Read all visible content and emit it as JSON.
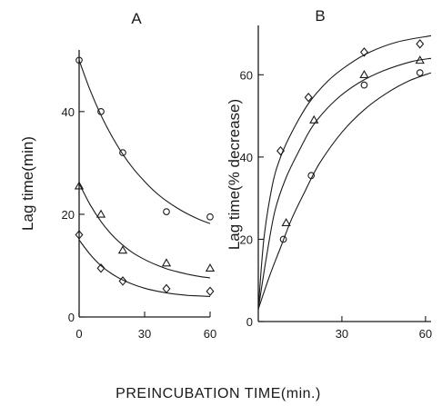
{
  "x_title": "PREINCUBATION TIME(min.)",
  "chart_data": [
    {
      "type": "scatter",
      "panel": "A",
      "xlabel": "",
      "ylabel": "Lag time(min)",
      "xlim": [
        0,
        60
      ],
      "ylim": [
        0,
        52
      ],
      "x_ticks": [
        0,
        30,
        60
      ],
      "y_ticks": [
        0,
        20,
        40
      ],
      "grid": false,
      "series": [
        {
          "marker": "circle",
          "points": [
            [
              0,
              50
            ],
            [
              10,
              40
            ],
            [
              20,
              32
            ],
            [
              40,
              20.5
            ],
            [
              60,
              19.5
            ]
          ],
          "curve": [
            [
              0,
              50
            ],
            [
              5,
              44.2
            ],
            [
              10,
              39.3
            ],
            [
              15,
              35.2
            ],
            [
              20,
              31.7
            ],
            [
              25,
              28.8
            ],
            [
              30,
              26.4
            ],
            [
              35,
              24.3
            ],
            [
              40,
              22.6
            ],
            [
              45,
              21.2
            ],
            [
              50,
              20
            ],
            [
              55,
              19
            ],
            [
              60,
              18.2
            ]
          ]
        },
        {
          "marker": "triangle",
          "points": [
            [
              0,
              25.5
            ],
            [
              10,
              20
            ],
            [
              20,
              13
            ],
            [
              40,
              10.5
            ],
            [
              60,
              9.5
            ]
          ],
          "curve": [
            [
              0,
              26
            ],
            [
              5,
              21.9
            ],
            [
              10,
              18.6
            ],
            [
              15,
              16
            ],
            [
              20,
              14
            ],
            [
              25,
              12.4
            ],
            [
              30,
              11.2
            ],
            [
              35,
              10.2
            ],
            [
              40,
              9.4
            ],
            [
              45,
              8.8
            ],
            [
              50,
              8.3
            ],
            [
              55,
              7.9
            ],
            [
              60,
              7.6
            ]
          ]
        },
        {
          "marker": "diamond",
          "points": [
            [
              0,
              16
            ],
            [
              10,
              9.5
            ],
            [
              20,
              7
            ],
            [
              40,
              5.5
            ],
            [
              60,
              5
            ]
          ],
          "curve": [
            [
              0,
              15
            ],
            [
              5,
              12.2
            ],
            [
              10,
              10
            ],
            [
              15,
              8.4
            ],
            [
              20,
              7.2
            ],
            [
              25,
              6.3
            ],
            [
              30,
              5.6
            ],
            [
              35,
              5.1
            ],
            [
              40,
              4.7
            ],
            [
              45,
              4.4
            ],
            [
              50,
              4.2
            ],
            [
              55,
              4.1
            ],
            [
              60,
              4
            ]
          ]
        }
      ]
    },
    {
      "type": "scatter",
      "panel": "B",
      "xlabel": "",
      "ylabel": "Lag time(% decrease)",
      "xlim": [
        0,
        62
      ],
      "ylim": [
        0,
        72
      ],
      "x_ticks": [
        30,
        60
      ],
      "y_ticks": [
        0,
        20,
        40,
        60
      ],
      "grid": false,
      "series": [
        {
          "marker": "diamond",
          "points": [
            [
              8,
              41.5
            ],
            [
              18,
              54.5
            ],
            [
              38,
              65.5
            ],
            [
              58,
              67.5
            ]
          ],
          "curve": [
            [
              0,
              3
            ],
            [
              2,
              20
            ],
            [
              5,
              33
            ],
            [
              8,
              40
            ],
            [
              12,
              46
            ],
            [
              18,
              53
            ],
            [
              25,
              58.5
            ],
            [
              32,
              62.3
            ],
            [
              40,
              65.5
            ],
            [
              50,
              68
            ],
            [
              62,
              69.5
            ]
          ]
        },
        {
          "marker": "triangle",
          "points": [
            [
              10,
              24
            ],
            [
              20,
              49
            ],
            [
              38,
              60
            ],
            [
              58,
              63.5
            ]
          ],
          "curve": [
            [
              0,
              3
            ],
            [
              3,
              16
            ],
            [
              6,
              27
            ],
            [
              10,
              35
            ],
            [
              15,
              42
            ],
            [
              20,
              48
            ],
            [
              28,
              54
            ],
            [
              36,
              58
            ],
            [
              45,
              61
            ],
            [
              55,
              63.2
            ],
            [
              62,
              64
            ]
          ]
        },
        {
          "marker": "circle",
          "points": [
            [
              9,
              20
            ],
            [
              19,
              35.5
            ],
            [
              38,
              57.5
            ],
            [
              58,
              60.5
            ]
          ],
          "curve": [
            [
              0,
              3
            ],
            [
              4,
              11
            ],
            [
              8,
              18
            ],
            [
              12,
              25
            ],
            [
              17,
              32
            ],
            [
              22,
              38.5
            ],
            [
              30,
              46
            ],
            [
              38,
              51.5
            ],
            [
              46,
              55.5
            ],
            [
              54,
              58.5
            ],
            [
              62,
              60.5
            ]
          ]
        }
      ]
    }
  ]
}
